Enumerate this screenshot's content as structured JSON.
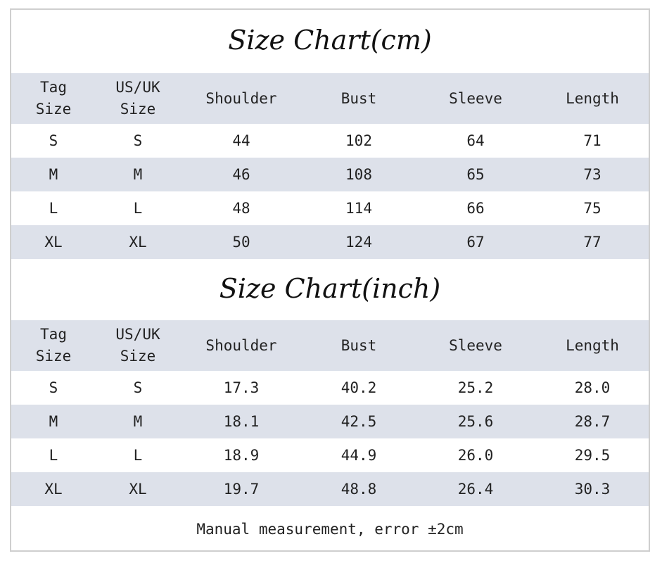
{
  "cm": {
    "title": "Size Chart(cm)",
    "headers": [
      "Tag\nSize",
      "US/UK\nSize",
      "Shoulder",
      "Bust",
      "Sleeve",
      "Length"
    ],
    "rows": [
      [
        "S",
        "S",
        "44",
        "102",
        "64",
        "71"
      ],
      [
        "M",
        "M",
        "46",
        "108",
        "65",
        "73"
      ],
      [
        "L",
        "L",
        "48",
        "114",
        "66",
        "75"
      ],
      [
        "XL",
        "XL",
        "50",
        "124",
        "67",
        "77"
      ]
    ]
  },
  "inch": {
    "title": "Size Chart(inch)",
    "headers": [
      "Tag\nSize",
      "US/UK\nSize",
      "Shoulder",
      "Bust",
      "Sleeve",
      "Length"
    ],
    "rows": [
      [
        "S",
        "S",
        "17.3",
        "40.2",
        "25.2",
        "28.0"
      ],
      [
        "M",
        "M",
        "18.1",
        "42.5",
        "25.6",
        "28.7"
      ],
      [
        "L",
        "L",
        "18.9",
        "44.9",
        "26.0",
        "29.5"
      ],
      [
        "XL",
        "XL",
        "19.7",
        "48.8",
        "26.4",
        "30.3"
      ]
    ]
  },
  "footnote": "Manual measurement, error ±2cm",
  "colors": {
    "band": "#dde1ea",
    "border": "#cfcfcf",
    "text": "#222222"
  }
}
